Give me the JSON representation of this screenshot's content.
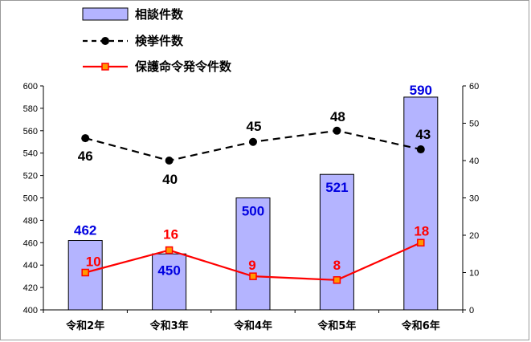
{
  "chart_data": {
    "type": "bar",
    "categories": [
      "令和2年",
      "令和3年",
      "令和4年",
      "令和5年",
      "令和6年"
    ],
    "series": [
      {
        "name": "相談件数",
        "type": "bar",
        "axis": "left",
        "values": [
          462,
          450,
          500,
          521,
          590
        ],
        "color": "#b4b4ff",
        "label_color": "#0000e0"
      },
      {
        "name": "検挙件数",
        "type": "line",
        "style": "dashed",
        "marker": "circle",
        "axis": "right",
        "values": [
          46,
          40,
          45,
          48,
          43
        ],
        "color": "#000000",
        "label_color": "#000000"
      },
      {
        "name": "保護命令発令件数",
        "type": "line",
        "style": "solid",
        "marker": "square",
        "axis": "right",
        "values": [
          10,
          16,
          9,
          8,
          18
        ],
        "color": "#ff0000",
        "label_color": "#ff0000"
      }
    ],
    "y_left": {
      "min": 400,
      "max": 600,
      "step": 20
    },
    "y_right": {
      "min": 0,
      "max": 60,
      "step": 10
    },
    "legend": "top-left",
    "grid": false
  }
}
